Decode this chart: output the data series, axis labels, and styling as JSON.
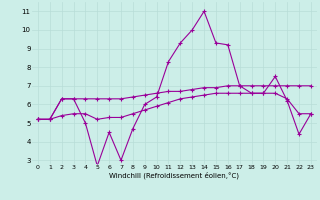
{
  "xlabel": "Windchill (Refroidissement éolien,°C)",
  "ylabel": "",
  "background_color": "#cceee8",
  "grid_color": "#b8ddd8",
  "line_color": "#990099",
  "x": [
    0,
    1,
    2,
    3,
    4,
    5,
    6,
    7,
    8,
    9,
    10,
    11,
    12,
    13,
    14,
    15,
    16,
    17,
    18,
    19,
    20,
    21,
    22,
    23
  ],
  "windchill": [
    5.2,
    5.2,
    6.3,
    6.3,
    5.0,
    2.7,
    4.5,
    3.0,
    4.7,
    6.0,
    6.4,
    8.3,
    9.3,
    10.0,
    11.0,
    9.3,
    9.2,
    7.0,
    6.6,
    6.6,
    7.5,
    6.2,
    4.4,
    5.5
  ],
  "line2": [
    5.2,
    5.2,
    6.3,
    6.3,
    6.3,
    6.3,
    6.3,
    6.3,
    6.4,
    6.5,
    6.6,
    6.7,
    6.7,
    6.8,
    6.9,
    6.9,
    7.0,
    7.0,
    7.0,
    7.0,
    7.0,
    7.0,
    7.0,
    7.0
  ],
  "line3": [
    5.2,
    5.2,
    5.4,
    5.5,
    5.5,
    5.2,
    5.3,
    5.3,
    5.5,
    5.7,
    5.9,
    6.1,
    6.3,
    6.4,
    6.5,
    6.6,
    6.6,
    6.6,
    6.6,
    6.6,
    6.6,
    6.3,
    5.5,
    5.5
  ],
  "ylim": [
    2.8,
    11.5
  ],
  "xlim": [
    -0.5,
    23.5
  ],
  "yticks": [
    3,
    4,
    5,
    6,
    7,
    8,
    9,
    10,
    11
  ],
  "xticks": [
    0,
    1,
    2,
    3,
    4,
    5,
    6,
    7,
    8,
    9,
    10,
    11,
    12,
    13,
    14,
    15,
    16,
    17,
    18,
    19,
    20,
    21,
    22,
    23
  ],
  "tick_fontsize": 4.5,
  "xlabel_fontsize": 5.0
}
